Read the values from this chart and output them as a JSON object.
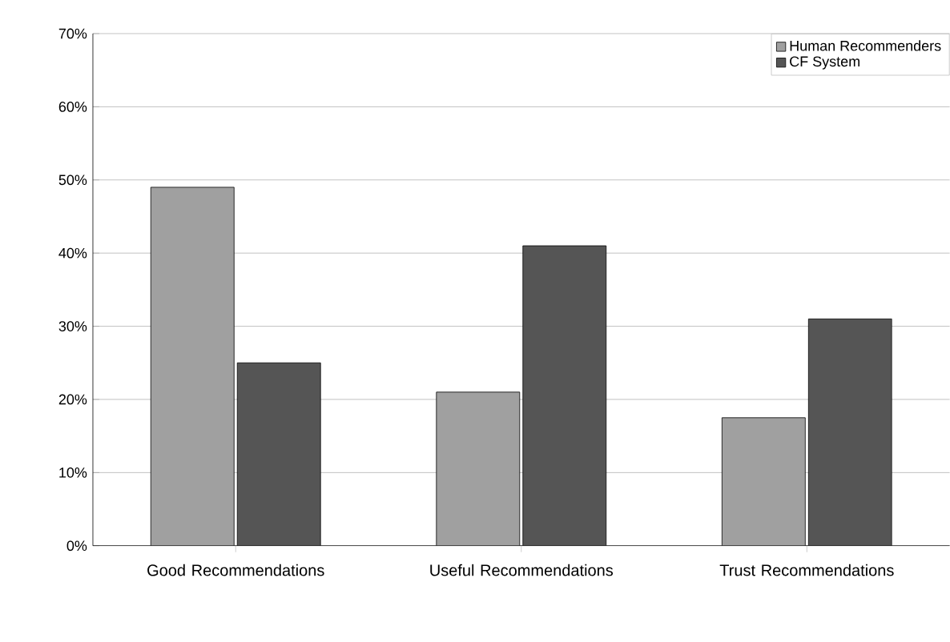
{
  "chart_data": {
    "type": "bar",
    "categories": [
      "Good Recommendations",
      "Useful Recommendations",
      "Trust Recommendations"
    ],
    "series": [
      {
        "name": "Human Recommenders",
        "color": "#a0a0a0",
        "values": [
          49,
          21,
          17.5
        ]
      },
      {
        "name": "CF System",
        "color": "#555555",
        "values": [
          25,
          41,
          31
        ]
      }
    ],
    "ylim": [
      0,
      70
    ],
    "yticks": [
      {
        "value": 0,
        "label": "0%"
      },
      {
        "value": 10,
        "label": "10%"
      },
      {
        "value": 20,
        "label": "20%"
      },
      {
        "value": 30,
        "label": "30%"
      },
      {
        "value": 40,
        "label": "40%"
      },
      {
        "value": 50,
        "label": "50%"
      },
      {
        "value": 60,
        "label": "60%"
      },
      {
        "value": 70,
        "label": "70%"
      }
    ],
    "grid": "y",
    "legend": "top right"
  }
}
